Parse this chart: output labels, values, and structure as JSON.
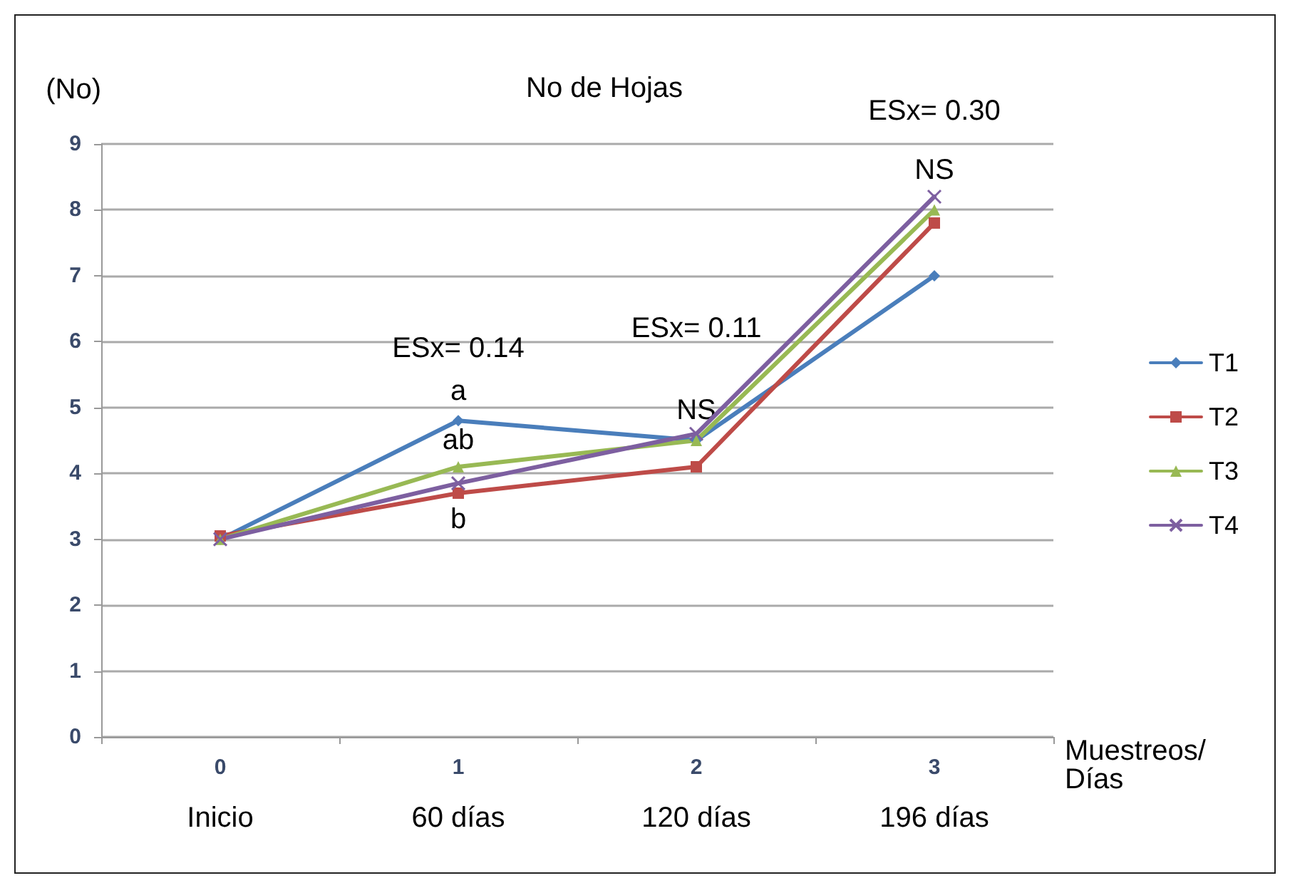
{
  "chart_data": {
    "type": "line",
    "title": "No de Hojas",
    "ylabel": "(No)",
    "xlabel": "Muestreos/\nDías",
    "categories": [
      "0\nInicio",
      "1\n60 días",
      "2\n120 días",
      "3\n196 días"
    ],
    "series": [
      {
        "name": "T1",
        "color": "#4a7ebb",
        "marker": "diamond",
        "values": [
          3.0,
          4.8,
          4.5,
          7.0
        ]
      },
      {
        "name": "T2",
        "color": "#be4b48",
        "marker": "square",
        "values": [
          3.05,
          3.7,
          4.1,
          7.8
        ]
      },
      {
        "name": "T3",
        "color": "#98b954",
        "marker": "triangle",
        "values": [
          3.0,
          4.1,
          4.5,
          8.0
        ]
      },
      {
        "name": "T4",
        "color": "#7d5fa0",
        "marker": "cross",
        "values": [
          3.0,
          3.85,
          4.6,
          8.2
        ]
      }
    ],
    "ylim": [
      0,
      9
    ],
    "yticks": [
      0,
      1,
      2,
      3,
      4,
      5,
      6,
      7,
      8,
      9
    ],
    "grid": "y",
    "legend": "right",
    "line_style": "solid",
    "annotations": [
      "ESx= 0.14",
      "a",
      "ab",
      "b",
      "ESx= 0.11",
      "NS",
      "NS",
      "ESx= 0.30"
    ]
  }
}
